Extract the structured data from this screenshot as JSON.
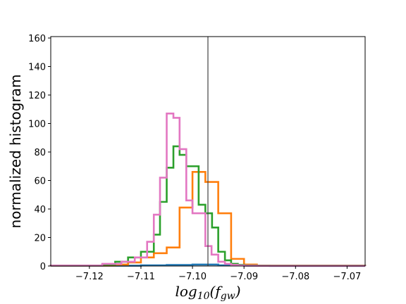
{
  "chart_data": {
    "type": "histogram",
    "xlabel": "log10(fgw)",
    "ylabel": "normalized histogram",
    "xlim": [
      -7.1275,
      -7.0665
    ],
    "ylim": [
      0,
      161
    ],
    "xticks": [
      {
        "value": -7.12,
        "label": "−7.12"
      },
      {
        "value": -7.11,
        "label": "−7.11"
      },
      {
        "value": -7.1,
        "label": "−7.10"
      },
      {
        "value": -7.09,
        "label": "−7.09"
      },
      {
        "value": -7.08,
        "label": "−7.08"
      },
      {
        "value": -7.07,
        "label": "−7.07"
      }
    ],
    "yticks": [
      {
        "value": 0,
        "label": "0"
      },
      {
        "value": 20,
        "label": "20"
      },
      {
        "value": 40,
        "label": "40"
      },
      {
        "value": 60,
        "label": "60"
      },
      {
        "value": 80,
        "label": "80"
      },
      {
        "value": 100,
        "label": "100"
      },
      {
        "value": 120,
        "label": "120"
      },
      {
        "value": 140,
        "label": "140"
      },
      {
        "value": 160,
        "label": "160"
      }
    ],
    "vline": -7.097,
    "grid": false,
    "series": [
      {
        "color": "#1f77b4",
        "edges": [
          -7.1275,
          -7.11,
          -7.105,
          -7.1,
          -7.095,
          -7.09,
          -7.085,
          -7.0665
        ],
        "values": [
          0.2,
          0.5,
          0.7,
          1.0,
          0.5,
          0.2,
          0.1
        ]
      },
      {
        "color": "#ff7f0e",
        "edges": [
          -7.1275,
          -7.115,
          -7.1125,
          -7.11,
          -7.1075,
          -7.105,
          -7.1025,
          -7.1,
          -7.0975,
          -7.095,
          -7.0925,
          -7.09,
          -7.0875,
          -7.0665
        ],
        "values": [
          0.3,
          1.0,
          2.5,
          6.0,
          9.0,
          13.0,
          41.0,
          66.0,
          59.0,
          37.0,
          5.0,
          1.0,
          0.3
        ]
      },
      {
        "color": "#2ca02c",
        "edges": [
          -7.1275,
          -7.1175,
          -7.115,
          -7.1125,
          -7.11,
          -7.1075,
          -7.1063,
          -7.105,
          -7.1037,
          -7.1025,
          -7.1012,
          -7.0988,
          -7.0975,
          -7.0962,
          -7.095,
          -7.0937,
          -7.0925,
          -7.0912,
          -7.09,
          -7.0875,
          -7.0665
        ],
        "values": [
          0.3,
          1.0,
          3.0,
          6.0,
          10.0,
          22.0,
          45.0,
          69.0,
          84.0,
          78.0,
          70.0,
          43.0,
          37.0,
          27.0,
          10.0,
          4.0,
          1.5,
          0.8,
          0.4,
          0.2
        ]
      },
      {
        "color": "#e377c2",
        "edges": [
          -7.1275,
          -7.1175,
          -7.1138,
          -7.1112,
          -7.1088,
          -7.1075,
          -7.1063,
          -7.105,
          -7.1037,
          -7.1025,
          -7.1012,
          -7.1,
          -7.0988,
          -7.0975,
          -7.0963,
          -7.095,
          -7.0937,
          -7.0925,
          -7.0912,
          -7.09,
          -7.0875,
          -7.0665
        ],
        "values": [
          0.3,
          1.5,
          3.0,
          6.0,
          17.0,
          36.0,
          62.0,
          107.0,
          104.0,
          82.0,
          46.0,
          37.0,
          37.0,
          14.0,
          8.0,
          3.0,
          1.5,
          0.8,
          0.4,
          0.2,
          0.1
        ]
      }
    ]
  }
}
